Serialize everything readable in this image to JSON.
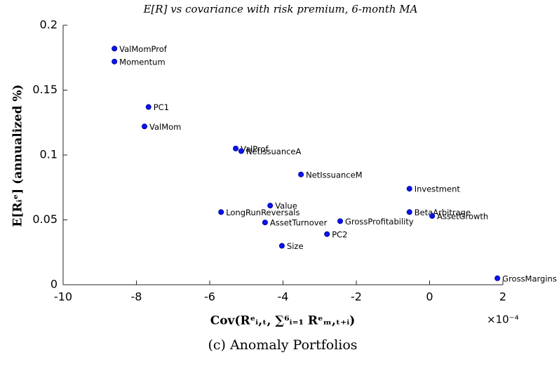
{
  "chart_data": {
    "type": "scatter",
    "title": "E[R] vs covariance with risk premium, 6-month MA",
    "x_label": "Cov(Rᵉᵢ,ₜ, ∑⁶ᵢ₌₁ Rᵉₘ,ₜ₊ᵢ)",
    "y_label": "E[Rᵢᵉ] (annualized %)",
    "x_exponent": "×10⁻⁴",
    "caption": "(c) Anomaly Portfolios",
    "color": "#0a14f0",
    "labels": [
      "ValMomProf",
      "Momentum",
      "PC1",
      "ValMom",
      "ValProf",
      "NetIssuanceA",
      "NetIssuanceM",
      "Investment",
      "Value",
      "LongRunReversals",
      "BetaArbitrage",
      "AssetGrowth",
      "AssetTurnover",
      "GrossProfitability",
      "PC2",
      "Size",
      "GrossMargins"
    ],
    "x": [
      -8.6,
      -8.6,
      -7.67,
      -7.78,
      -5.29,
      -5.14,
      -3.51,
      -0.55,
      -4.35,
      -5.69,
      -0.55,
      0.07,
      -4.49,
      -2.44,
      -2.8,
      -4.03,
      1.85
    ],
    "values": [
      0.182,
      0.172,
      0.137,
      0.122,
      0.105,
      0.103,
      0.085,
      0.074,
      0.061,
      0.056,
      0.056,
      0.053,
      0.048,
      0.049,
      0.039,
      0.03,
      0.005
    ],
    "xlim": [
      -10,
      2
    ],
    "xticks": [
      -10,
      -8,
      -6,
      -4,
      -2,
      0,
      2
    ],
    "ylim": [
      0,
      0.2
    ],
    "yticks": [
      0,
      0.05,
      0.1,
      0.15,
      0.2
    ]
  }
}
